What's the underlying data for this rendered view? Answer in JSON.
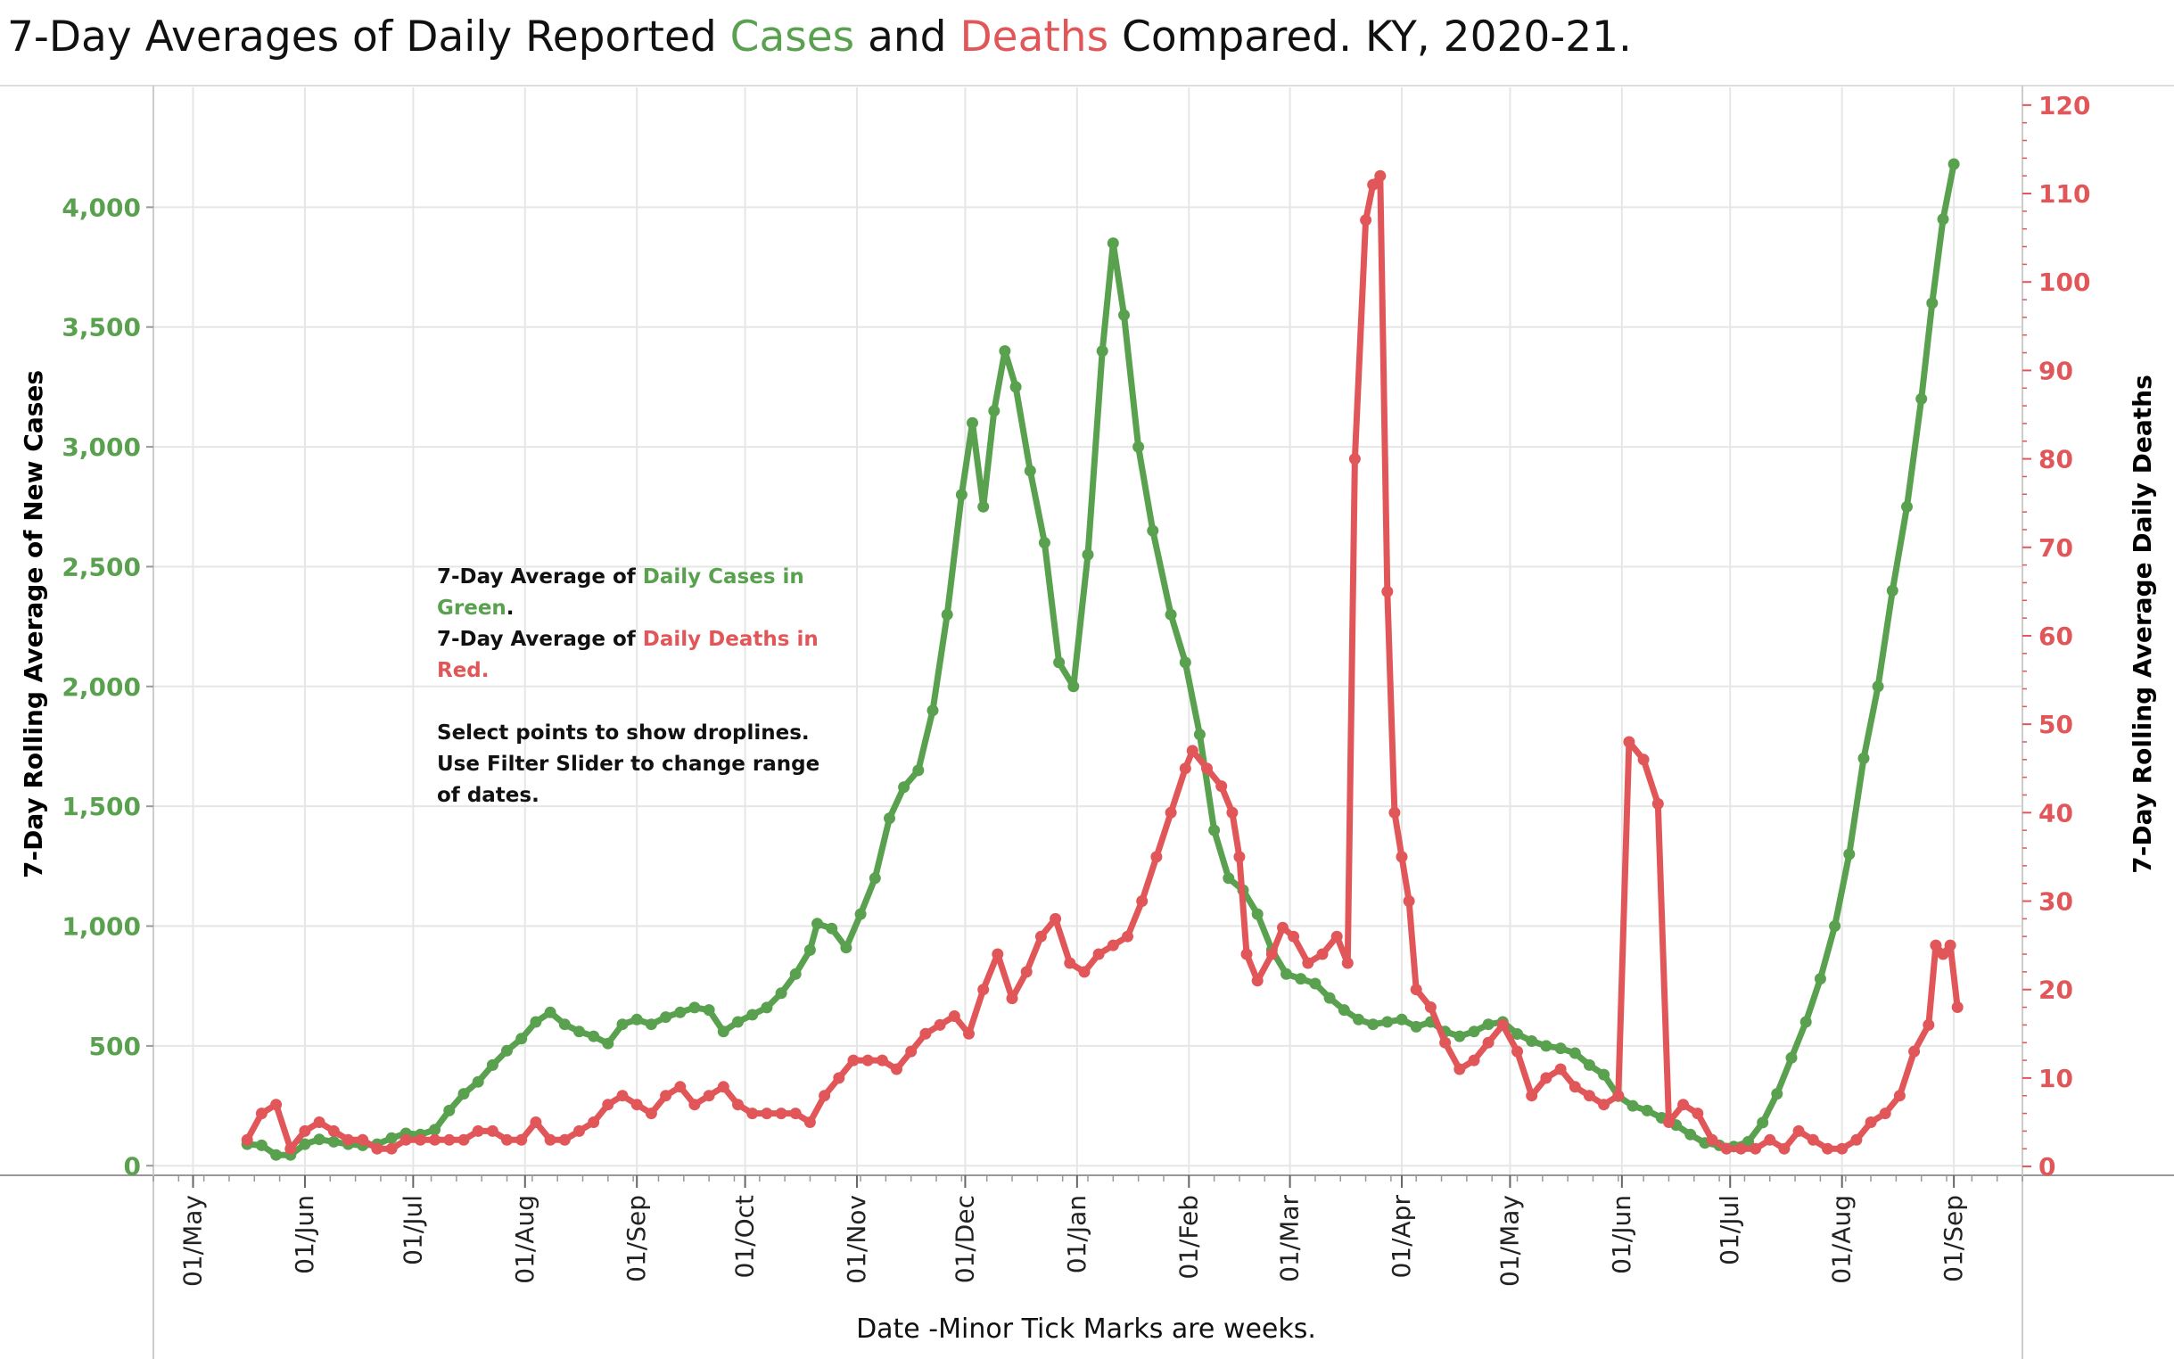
{
  "title": {
    "prefix": "7-Day Averages of Daily Reported ",
    "cases_word": "Cases",
    "middle": " and ",
    "deaths_word": "Deaths",
    "suffix": " Compared. KY, 2020-21."
  },
  "colors": {
    "cases": "#59a14f",
    "deaths": "#e15759",
    "grid": "#e6e6e6",
    "axis": "#999999"
  },
  "note": {
    "line1_prefix": "7-Day Average of ",
    "line1_colored": "Daily Cases in Green",
    "line1_suffix": ".",
    "line2_prefix": "7-Day Average of ",
    "line2_colored": "Daily Deaths in Red.",
    "line3": "Select points to show droplines.",
    "line4": "Use Filter Slider to change range of dates."
  },
  "chart_data": {
    "type": "line",
    "title": "7-Day Averages of Daily Reported Cases and Deaths Compared. KY, 2020-21.",
    "xlabel": "Date  -Minor Tick Marks are weeks.",
    "ylabel_left": "7-Day Rolling  Average of New Cases",
    "ylabel_right": "7-Day Rolling Average Daily  Deaths",
    "x_tick_labels": [
      "01/May",
      "01/Jun",
      "01/Jul",
      "01/Aug",
      "01/Sep",
      "01/Oct",
      "01/Nov",
      "01/Dec",
      "01/Jan",
      "01/Feb",
      "01/Mar",
      "01/Apr",
      "01/May",
      "01/Jun",
      "01/Jul",
      "01/Aug",
      "01/Sep"
    ],
    "x_tick_dates": [
      "2020-05-01",
      "2020-06-01",
      "2020-07-01",
      "2020-08-01",
      "2020-09-01",
      "2020-10-01",
      "2020-11-01",
      "2020-12-01",
      "2021-01-01",
      "2021-02-01",
      "2021-03-01",
      "2021-04-01",
      "2021-05-01",
      "2021-06-01",
      "2021-07-01",
      "2021-08-01",
      "2021-09-01"
    ],
    "xlim": [
      "2020-04-20",
      "2021-09-20"
    ],
    "ylim_left": [
      -40,
      4500
    ],
    "ylim_right": [
      -1,
      122
    ],
    "y_ticks_left": [
      0,
      500,
      1000,
      1500,
      2000,
      2500,
      3000,
      3500,
      4000
    ],
    "y_ticks_left_labels": [
      "0",
      "500",
      "1,000",
      "1,500",
      "2,000",
      "2,500",
      "3,000",
      "3,500",
      "4,000"
    ],
    "y_ticks_right": [
      0,
      10,
      20,
      30,
      40,
      50,
      60,
      70,
      80,
      90,
      100,
      110,
      120
    ],
    "y_ticks_right_labels": [
      "0",
      "10",
      "20",
      "30",
      "40",
      "50",
      "60",
      "70",
      "80",
      "90",
      "100",
      "110",
      "120"
    ],
    "grid": true,
    "series": [
      {
        "name": "Cases",
        "axis": "left",
        "points": [
          [
            "2020-05-16",
            90
          ],
          [
            "2020-05-20",
            85
          ],
          [
            "2020-05-24",
            45
          ],
          [
            "2020-05-28",
            45
          ],
          [
            "2020-06-01",
            90
          ],
          [
            "2020-06-05",
            110
          ],
          [
            "2020-06-09",
            100
          ],
          [
            "2020-06-13",
            90
          ],
          [
            "2020-06-17",
            85
          ],
          [
            "2020-06-21",
            90
          ],
          [
            "2020-06-25",
            115
          ],
          [
            "2020-06-29",
            135
          ],
          [
            "2020-07-03",
            130
          ],
          [
            "2020-07-07",
            150
          ],
          [
            "2020-07-11",
            230
          ],
          [
            "2020-07-15",
            300
          ],
          [
            "2020-07-19",
            350
          ],
          [
            "2020-07-23",
            420
          ],
          [
            "2020-07-27",
            480
          ],
          [
            "2020-07-31",
            530
          ],
          [
            "2020-08-04",
            600
          ],
          [
            "2020-08-08",
            640
          ],
          [
            "2020-08-12",
            590
          ],
          [
            "2020-08-16",
            560
          ],
          [
            "2020-08-20",
            540
          ],
          [
            "2020-08-24",
            510
          ],
          [
            "2020-08-28",
            590
          ],
          [
            "2020-09-01",
            610
          ],
          [
            "2020-09-05",
            590
          ],
          [
            "2020-09-09",
            620
          ],
          [
            "2020-09-13",
            640
          ],
          [
            "2020-09-17",
            660
          ],
          [
            "2020-09-21",
            650
          ],
          [
            "2020-09-25",
            560
          ],
          [
            "2020-09-29",
            600
          ],
          [
            "2020-10-03",
            630
          ],
          [
            "2020-10-07",
            660
          ],
          [
            "2020-10-11",
            720
          ],
          [
            "2020-10-15",
            800
          ],
          [
            "2020-10-19",
            900
          ],
          [
            "2020-10-21",
            1010
          ],
          [
            "2020-10-25",
            990
          ],
          [
            "2020-10-29",
            910
          ],
          [
            "2020-11-02",
            1050
          ],
          [
            "2020-11-06",
            1200
          ],
          [
            "2020-11-10",
            1450
          ],
          [
            "2020-11-14",
            1580
          ],
          [
            "2020-11-18",
            1650
          ],
          [
            "2020-11-22",
            1900
          ],
          [
            "2020-11-26",
            2300
          ],
          [
            "2020-11-30",
            2800
          ],
          [
            "2020-12-03",
            3100
          ],
          [
            "2020-12-06",
            2750
          ],
          [
            "2020-12-09",
            3150
          ],
          [
            "2020-12-12",
            3400
          ],
          [
            "2020-12-15",
            3250
          ],
          [
            "2020-12-19",
            2900
          ],
          [
            "2020-12-23",
            2600
          ],
          [
            "2020-12-27",
            2100
          ],
          [
            "2020-12-31",
            2000
          ],
          [
            "2021-01-04",
            2550
          ],
          [
            "2021-01-08",
            3400
          ],
          [
            "2021-01-11",
            3850
          ],
          [
            "2021-01-14",
            3550
          ],
          [
            "2021-01-18",
            3000
          ],
          [
            "2021-01-22",
            2650
          ],
          [
            "2021-01-27",
            2300
          ],
          [
            "2021-01-31",
            2100
          ],
          [
            "2021-02-04",
            1800
          ],
          [
            "2021-02-08",
            1400
          ],
          [
            "2021-02-12",
            1200
          ],
          [
            "2021-02-16",
            1150
          ],
          [
            "2021-02-20",
            1050
          ],
          [
            "2021-02-24",
            900
          ],
          [
            "2021-02-28",
            800
          ],
          [
            "2021-03-04",
            780
          ],
          [
            "2021-03-08",
            760
          ],
          [
            "2021-03-12",
            700
          ],
          [
            "2021-03-16",
            650
          ],
          [
            "2021-03-20",
            610
          ],
          [
            "2021-03-24",
            590
          ],
          [
            "2021-03-28",
            600
          ],
          [
            "2021-04-01",
            610
          ],
          [
            "2021-04-05",
            580
          ],
          [
            "2021-04-09",
            600
          ],
          [
            "2021-04-13",
            560
          ],
          [
            "2021-04-17",
            540
          ],
          [
            "2021-04-21",
            560
          ],
          [
            "2021-04-25",
            590
          ],
          [
            "2021-04-29",
            600
          ],
          [
            "2021-05-03",
            550
          ],
          [
            "2021-05-07",
            520
          ],
          [
            "2021-05-11",
            500
          ],
          [
            "2021-05-15",
            490
          ],
          [
            "2021-05-19",
            470
          ],
          [
            "2021-05-23",
            420
          ],
          [
            "2021-05-27",
            380
          ],
          [
            "2021-05-31",
            290
          ],
          [
            "2021-06-04",
            250
          ],
          [
            "2021-06-08",
            230
          ],
          [
            "2021-06-12",
            200
          ],
          [
            "2021-06-16",
            170
          ],
          [
            "2021-06-20",
            130
          ],
          [
            "2021-06-24",
            95
          ],
          [
            "2021-06-28",
            85
          ],
          [
            "2021-07-02",
            80
          ],
          [
            "2021-07-06",
            100
          ],
          [
            "2021-07-10",
            180
          ],
          [
            "2021-07-14",
            300
          ],
          [
            "2021-07-18",
            450
          ],
          [
            "2021-07-22",
            600
          ],
          [
            "2021-07-26",
            780
          ],
          [
            "2021-07-30",
            1000
          ],
          [
            "2021-08-03",
            1300
          ],
          [
            "2021-08-07",
            1700
          ],
          [
            "2021-08-11",
            2000
          ],
          [
            "2021-08-15",
            2400
          ],
          [
            "2021-08-19",
            2750
          ],
          [
            "2021-08-23",
            3200
          ],
          [
            "2021-08-26",
            3600
          ],
          [
            "2021-08-29",
            3950
          ],
          [
            "2021-09-01",
            4180
          ]
        ]
      },
      {
        "name": "Deaths",
        "axis": "right",
        "points": [
          [
            "2020-05-16",
            3
          ],
          [
            "2020-05-20",
            6
          ],
          [
            "2020-05-24",
            7
          ],
          [
            "2020-05-28",
            2
          ],
          [
            "2020-06-01",
            4
          ],
          [
            "2020-06-05",
            5
          ],
          [
            "2020-06-09",
            4
          ],
          [
            "2020-06-13",
            3
          ],
          [
            "2020-06-17",
            3
          ],
          [
            "2020-06-21",
            2
          ],
          [
            "2020-06-25",
            2
          ],
          [
            "2020-06-29",
            3
          ],
          [
            "2020-07-03",
            3
          ],
          [
            "2020-07-07",
            3
          ],
          [
            "2020-07-11",
            3
          ],
          [
            "2020-07-15",
            3
          ],
          [
            "2020-07-19",
            4
          ],
          [
            "2020-07-23",
            4
          ],
          [
            "2020-07-27",
            3
          ],
          [
            "2020-07-31",
            3
          ],
          [
            "2020-08-04",
            5
          ],
          [
            "2020-08-08",
            3
          ],
          [
            "2020-08-12",
            3
          ],
          [
            "2020-08-16",
            4
          ],
          [
            "2020-08-20",
            5
          ],
          [
            "2020-08-24",
            7
          ],
          [
            "2020-08-28",
            8
          ],
          [
            "2020-09-01",
            7
          ],
          [
            "2020-09-05",
            6
          ],
          [
            "2020-09-09",
            8
          ],
          [
            "2020-09-13",
            9
          ],
          [
            "2020-09-17",
            7
          ],
          [
            "2020-09-21",
            8
          ],
          [
            "2020-09-25",
            9
          ],
          [
            "2020-09-29",
            7
          ],
          [
            "2020-10-03",
            6
          ],
          [
            "2020-10-07",
            6
          ],
          [
            "2020-10-11",
            6
          ],
          [
            "2020-10-15",
            6
          ],
          [
            "2020-10-19",
            5
          ],
          [
            "2020-10-23",
            8
          ],
          [
            "2020-10-27",
            10
          ],
          [
            "2020-10-31",
            12
          ],
          [
            "2020-11-04",
            12
          ],
          [
            "2020-11-08",
            12
          ],
          [
            "2020-11-12",
            11
          ],
          [
            "2020-11-16",
            13
          ],
          [
            "2020-11-20",
            15
          ],
          [
            "2020-11-24",
            16
          ],
          [
            "2020-11-28",
            17
          ],
          [
            "2020-12-02",
            15
          ],
          [
            "2020-12-06",
            20
          ],
          [
            "2020-12-10",
            24
          ],
          [
            "2020-12-14",
            19
          ],
          [
            "2020-12-18",
            22
          ],
          [
            "2020-12-22",
            26
          ],
          [
            "2020-12-26",
            28
          ],
          [
            "2020-12-30",
            23
          ],
          [
            "2021-01-03",
            22
          ],
          [
            "2021-01-07",
            24
          ],
          [
            "2021-01-11",
            25
          ],
          [
            "2021-01-15",
            26
          ],
          [
            "2021-01-19",
            30
          ],
          [
            "2021-01-23",
            35
          ],
          [
            "2021-01-27",
            40
          ],
          [
            "2021-01-31",
            45
          ],
          [
            "2021-02-02",
            47
          ],
          [
            "2021-02-06",
            45
          ],
          [
            "2021-02-10",
            43
          ],
          [
            "2021-02-13",
            40
          ],
          [
            "2021-02-15",
            35
          ],
          [
            "2021-02-17",
            24
          ],
          [
            "2021-02-20",
            21
          ],
          [
            "2021-02-24",
            24
          ],
          [
            "2021-02-27",
            27
          ],
          [
            "2021-03-02",
            26
          ],
          [
            "2021-03-06",
            23
          ],
          [
            "2021-03-10",
            24
          ],
          [
            "2021-03-14",
            26
          ],
          [
            "2021-03-17",
            23
          ],
          [
            "2021-03-19",
            80
          ],
          [
            "2021-03-22",
            107
          ],
          [
            "2021-03-24",
            111
          ],
          [
            "2021-03-26",
            112
          ],
          [
            "2021-03-28",
            65
          ],
          [
            "2021-03-30",
            40
          ],
          [
            "2021-04-01",
            35
          ],
          [
            "2021-04-03",
            30
          ],
          [
            "2021-04-05",
            20
          ],
          [
            "2021-04-09",
            18
          ],
          [
            "2021-04-13",
            14
          ],
          [
            "2021-04-17",
            11
          ],
          [
            "2021-04-21",
            12
          ],
          [
            "2021-04-25",
            14
          ],
          [
            "2021-04-29",
            16
          ],
          [
            "2021-05-03",
            13
          ],
          [
            "2021-05-07",
            8
          ],
          [
            "2021-05-11",
            10
          ],
          [
            "2021-05-15",
            11
          ],
          [
            "2021-05-19",
            9
          ],
          [
            "2021-05-23",
            8
          ],
          [
            "2021-05-27",
            7
          ],
          [
            "2021-05-31",
            8
          ],
          [
            "2021-06-03",
            48
          ],
          [
            "2021-06-07",
            46
          ],
          [
            "2021-06-11",
            41
          ],
          [
            "2021-06-14",
            5
          ],
          [
            "2021-06-18",
            7
          ],
          [
            "2021-06-22",
            6
          ],
          [
            "2021-06-26",
            3
          ],
          [
            "2021-06-30",
            2
          ],
          [
            "2021-07-04",
            2
          ],
          [
            "2021-07-08",
            2
          ],
          [
            "2021-07-12",
            3
          ],
          [
            "2021-07-16",
            2
          ],
          [
            "2021-07-20",
            4
          ],
          [
            "2021-07-24",
            3
          ],
          [
            "2021-07-28",
            2
          ],
          [
            "2021-08-01",
            2
          ],
          [
            "2021-08-05",
            3
          ],
          [
            "2021-08-09",
            5
          ],
          [
            "2021-08-13",
            6
          ],
          [
            "2021-08-17",
            8
          ],
          [
            "2021-08-21",
            13
          ],
          [
            "2021-08-25",
            16
          ],
          [
            "2021-08-27",
            25
          ],
          [
            "2021-08-29",
            24
          ],
          [
            "2021-08-31",
            25
          ],
          [
            "2021-09-02",
            18
          ]
        ]
      }
    ]
  }
}
